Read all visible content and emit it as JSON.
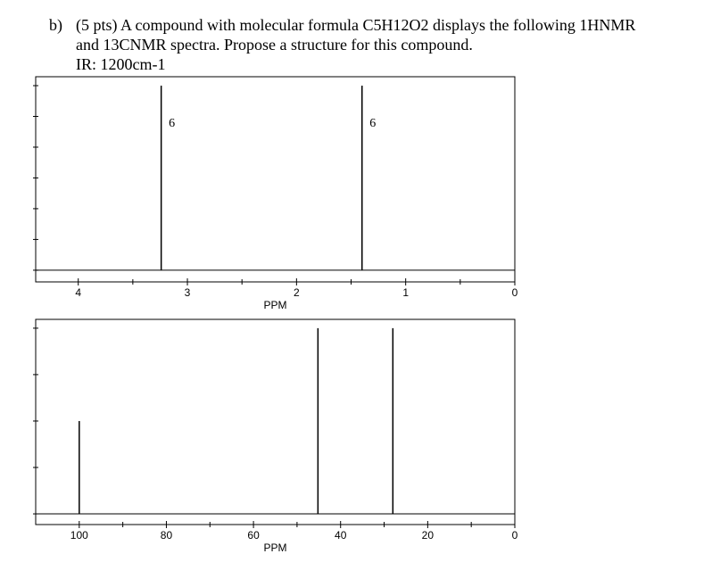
{
  "question": {
    "label": "b)",
    "lines": [
      "(5 pts) A compound with molecular formula C5H12O2 displays the following 1HNMR",
      "and 13CNMR spectra. Propose a structure for this compound.",
      "IR: 1200cm-1"
    ]
  },
  "chart_data": [
    {
      "type": "spectrum",
      "x": [
        3.24,
        1.4
      ],
      "values": [
        6,
        6
      ],
      "integrations": [
        6,
        6
      ],
      "xlim": [
        4.39,
        0
      ],
      "xticks": [
        4,
        3,
        2,
        1,
        0
      ],
      "xminorticks": [
        3.5,
        2.5,
        1.5,
        0.5
      ],
      "ylim": [
        -0.38,
        6.29
      ],
      "yticks": [
        0,
        1,
        2,
        3,
        4,
        5,
        6
      ],
      "xlabel": "PPM",
      "color": "#000000"
    },
    {
      "type": "spectrum",
      "x": [
        100,
        45.2,
        28
      ],
      "values": [
        2,
        4,
        4
      ],
      "xlim": [
        110,
        0
      ],
      "xticks": [
        100,
        80,
        60,
        40,
        20,
        0
      ],
      "xminorticks": [
        90,
        70,
        50,
        30,
        10
      ],
      "ylim": [
        -0.23,
        4.19
      ],
      "yticks": [
        0,
        1,
        2,
        3,
        4
      ],
      "xlabel": "PPM",
      "color": "#000000"
    }
  ]
}
